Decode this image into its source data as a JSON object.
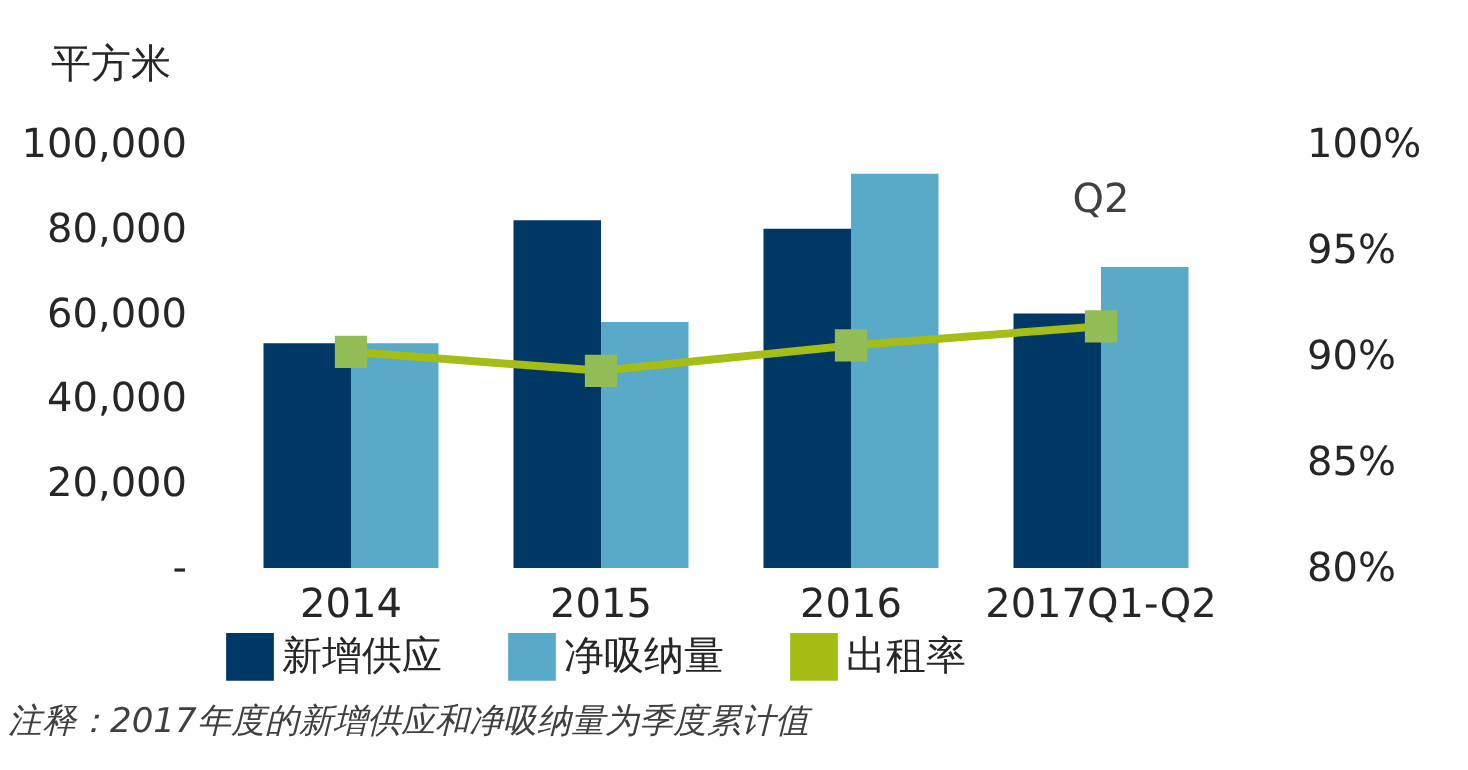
{
  "chart_data": {
    "type": "bar",
    "ylabel": "平方米",
    "categories": [
      "2014",
      "2015",
      "2016",
      "2017Q1-Q2"
    ],
    "series": [
      {
        "name": "新增供应",
        "color": "#003865",
        "values": [
          53000,
          82000,
          80000,
          60000
        ]
      },
      {
        "name": "净吸纳量",
        "color": "#59aac8",
        "values": [
          53000,
          58000,
          93000,
          71000
        ]
      },
      {
        "name": "出租率",
        "type": "line",
        "axis": "y2",
        "marker": "square",
        "color": "#a5bd14",
        "values": [
          90.2,
          89.3,
          90.5,
          91.4
        ]
      }
    ],
    "ylim": [
      0,
      100000
    ],
    "yticks": [
      {
        "value": 0,
        "label": "-"
      },
      {
        "value": 20000,
        "label": "20,000"
      },
      {
        "value": 40000,
        "label": "40,000"
      },
      {
        "value": 60000,
        "label": "60,000"
      },
      {
        "value": 80000,
        "label": "80,000"
      },
      {
        "value": 100000,
        "label": "100,000"
      }
    ],
    "y2lim": [
      80,
      100
    ],
    "y2ticks": [
      {
        "value": 80,
        "label": "80%"
      },
      {
        "value": 85,
        "label": "85%"
      },
      {
        "value": 90,
        "label": "90%"
      },
      {
        "value": 95,
        "label": "95%"
      },
      {
        "value": 100,
        "label": "100%"
      }
    ],
    "annotations": [
      "Q2",
      "注释：2017年度的新增供应和净吸纳量为季度累计值"
    ],
    "grid": false,
    "legend": "bottom"
  }
}
